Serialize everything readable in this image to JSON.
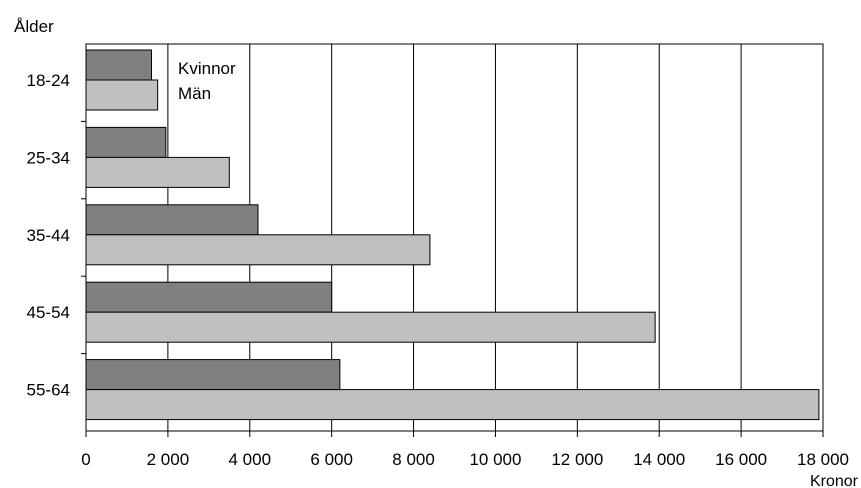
{
  "chart_data": {
    "type": "bar",
    "orientation": "horizontal",
    "title": "",
    "ylabel": "Ålder",
    "xlabel": "Kronor",
    "categories": [
      "18-24",
      "25-34",
      "35-44",
      "45-54",
      "55-64"
    ],
    "series": [
      {
        "name": "Kvinnor",
        "values": [
          1600,
          1950,
          4200,
          6000,
          6200
        ],
        "color": "#808080"
      },
      {
        "name": "Män",
        "values": [
          1750,
          3500,
          8400,
          13900,
          17900
        ],
        "color": "#c0c0c0"
      }
    ],
    "xlim": [
      0,
      18000
    ],
    "xticks": [
      0,
      2000,
      4000,
      6000,
      8000,
      10000,
      12000,
      14000,
      16000,
      18000
    ],
    "xtick_labels": [
      "0",
      "2 000",
      "4 000",
      "6 000",
      "8 000",
      "10 000",
      "12 000",
      "14 000",
      "16 000",
      "18 000"
    ],
    "grid": "vertical",
    "legend": "top-left, inside plot, text labels only"
  }
}
